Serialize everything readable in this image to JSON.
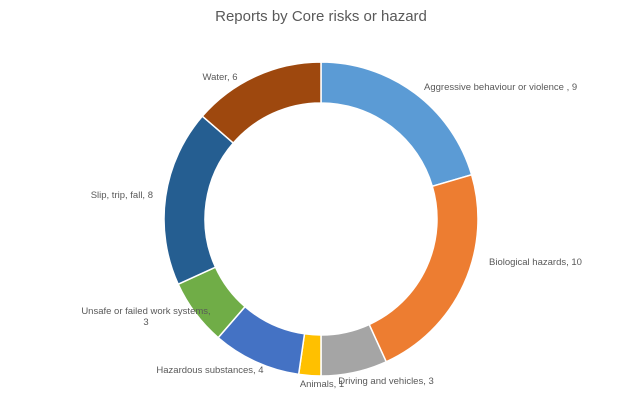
{
  "chart_data": {
    "type": "pie",
    "variant": "doughnut",
    "title": "Reports by Core risks or hazard",
    "legend": "none",
    "slices": [
      {
        "label": "Aggressive behaviour or violence",
        "value": 9,
        "color": "#5B9BD5",
        "data_label": [
          "Aggressive behaviour or violence , 9"
        ]
      },
      {
        "label": "Biological hazards",
        "value": 10,
        "color": "#ED7D31",
        "data_label": [
          "Biological hazards, 10"
        ]
      },
      {
        "label": "Driving and vehicles",
        "value": 3,
        "color": "#A5A5A5",
        "data_label": [
          "Driving and vehicles, 3"
        ]
      },
      {
        "label": "Animals",
        "value": 1,
        "color": "#FFC000",
        "data_label": [
          "Animals, 1"
        ]
      },
      {
        "label": "Hazardous substances",
        "value": 4,
        "color": "#4472C4",
        "data_label": [
          "Hazardous substances, 4"
        ]
      },
      {
        "label": "Unsafe or failed work systems",
        "value": 3,
        "color": "#70AD47",
        "data_label": [
          "Unsafe or failed work systems,",
          "3"
        ]
      },
      {
        "label": "Slip, trip, fall",
        "value": 8,
        "color": "#255E91",
        "data_label": [
          "Slip, trip, fall, 8"
        ]
      },
      {
        "label": "Water",
        "value": 6,
        "color": "#9E480E",
        "data_label": [
          "Water, 6"
        ]
      }
    ]
  }
}
